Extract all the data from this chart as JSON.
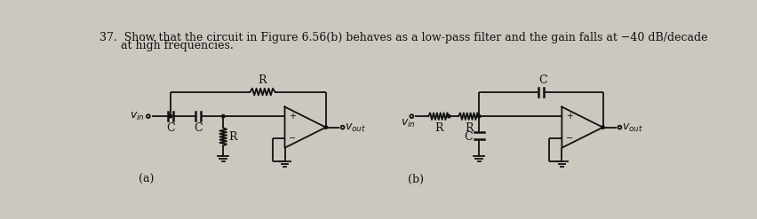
{
  "bg_color": "#ccc8c0",
  "line_color": "#111111",
  "text_color": "#111111",
  "title_line1": "37.  Show that the circuit in Figure 6.56(b) behaves as a low-pass filter and the gain falls at −40 dB/decade",
  "title_line2": "      at high frequencies.",
  "label_a": "(a)",
  "label_b": "(b)",
  "label_vin_a": "$v_{in}$",
  "label_vout_a": "$v_{out}$",
  "label_vin_b": "$v_{in}$",
  "label_vout_b": "$v_{out}$",
  "label_R": "R",
  "label_C": "C",
  "title_fontsize": 9.0,
  "label_fontsize": 9,
  "fig_width": 8.53,
  "fig_height": 2.47,
  "dpi": 100
}
